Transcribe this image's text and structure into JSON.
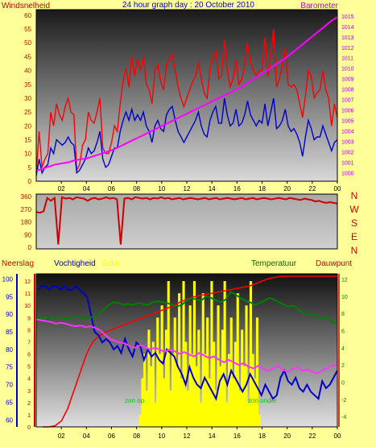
{
  "page_bg": "#ffff99",
  "chart_data": [
    {
      "type": "line",
      "title": "24 hour graph day : 20 October 2010",
      "left_label": "Windsnelheid",
      "right_label": "Barometer",
      "left_ticks": [
        "0",
        "5",
        "10",
        "15",
        "20",
        "25",
        "30",
        "35",
        "40",
        "45",
        "50",
        "55",
        "60"
      ],
      "right_ticks": [
        "1000",
        "1001",
        "1002",
        "1003",
        "1004",
        "1005",
        "1006",
        "1007",
        "1008",
        "1009",
        "1010",
        "1011",
        "1012",
        "1013",
        "1014",
        "1015"
      ],
      "x_ticks": [
        "02",
        "04",
        "06",
        "08",
        "10",
        "12",
        "14",
        "16",
        "18",
        "20",
        "22",
        "00"
      ],
      "ylim_left": [
        0,
        62
      ],
      "ylim_right": [
        999.2,
        1015.6
      ],
      "colors": {
        "gust": "#ff0000",
        "wind": "#0000cc",
        "barometer": "#ff00ff",
        "left_axis": "#cc0000",
        "right_axis": "#cc00cc"
      },
      "series": [
        {
          "key": "gust",
          "values": [
            3,
            18,
            5,
            8,
            10,
            25,
            20,
            28,
            24,
            22,
            27,
            30,
            25,
            24,
            4,
            6,
            13,
            15,
            25,
            22,
            21,
            25,
            30,
            12,
            10,
            10,
            14,
            20,
            18,
            28,
            36,
            41,
            34,
            45,
            38,
            44,
            40,
            45,
            35,
            33,
            28,
            40,
            42,
            36,
            33,
            42,
            44,
            46,
            40,
            34,
            30,
            27,
            30,
            33,
            36,
            38,
            43,
            37,
            32,
            30,
            41,
            45,
            47,
            37,
            38,
            51,
            40,
            34,
            37,
            44,
            35,
            37,
            42,
            50,
            43,
            40,
            38,
            40,
            40,
            52,
            38,
            45,
            55,
            34,
            37,
            42,
            48,
            35,
            34,
            35,
            33,
            28,
            23,
            31,
            40,
            38,
            30,
            32,
            33,
            40,
            33,
            30,
            20,
            28,
            23
          ]
        },
        {
          "key": "wind",
          "values": [
            2,
            8,
            3,
            5,
            6,
            12,
            10,
            15,
            14,
            13,
            14,
            16,
            14,
            13,
            3,
            4,
            6,
            8,
            12,
            10,
            11,
            14,
            18,
            8,
            5,
            6,
            9,
            12,
            12,
            18,
            22,
            25,
            22,
            26,
            22,
            24,
            22,
            25,
            20,
            18,
            14,
            20,
            22,
            19,
            18,
            24,
            26,
            27,
            22,
            18,
            16,
            14,
            16,
            18,
            20,
            22,
            25,
            20,
            17,
            16,
            22,
            25,
            27,
            21,
            21,
            30,
            24,
            20,
            21,
            26,
            20,
            21,
            24,
            29,
            24,
            22,
            20,
            22,
            21,
            28,
            20,
            25,
            30,
            19,
            20,
            22,
            26,
            20,
            18,
            19,
            17,
            14,
            9,
            16,
            22,
            19,
            15,
            16,
            16,
            20,
            17,
            14,
            11,
            14,
            15
          ]
        },
        {
          "key": "barometer",
          "values": [
            1000.2,
            1000.4,
            1000.6,
            1000.8,
            1000.9,
            1001.0,
            1001.2,
            1001.3,
            1001.4,
            1001.6,
            1001.8,
            1002.0,
            1002.2,
            1002.5,
            1002.8,
            1003.1,
            1003.4,
            1003.7,
            1004.0,
            1004.3,
            1004.6,
            1004.9,
            1005.2,
            1005.5,
            1005.8,
            1006.1,
            1006.4,
            1006.7,
            1007.0,
            1007.3,
            1007.6,
            1007.9,
            1008.2,
            1008.6,
            1009.0,
            1009.4,
            1009.8,
            1010.2,
            1010.6,
            1011.0,
            1011.5,
            1012.0,
            1012.5,
            1013.0,
            1013.5,
            1014.0,
            1014.5,
            1014.9
          ]
        }
      ]
    },
    {
      "type": "line",
      "y_ticks": [
        "0",
        "90",
        "180",
        "270",
        "360"
      ],
      "ylim": [
        0,
        360
      ],
      "compass_labels": [
        "N",
        "W",
        "S",
        "E",
        "N"
      ],
      "colors": {
        "direction": "#cc0000",
        "axis": "#cc0000",
        "compass": "#cc0000"
      },
      "series": [
        {
          "key": "direction",
          "values": [
            250,
            245,
            255,
            350,
            330,
            350,
            20,
            355,
            345,
            350,
            340,
            355,
            350,
            345,
            330,
            345,
            350,
            340,
            345,
            355,
            345,
            350,
            340,
            20,
            345,
            350,
            340,
            355,
            350,
            345,
            350,
            340,
            350,
            345,
            355,
            345,
            350,
            340,
            345,
            350,
            340,
            345,
            350,
            345,
            340,
            345,
            350,
            340,
            345,
            350,
            340,
            345,
            350,
            345,
            340,
            345,
            350,
            340,
            345,
            350,
            340,
            345,
            350,
            345,
            340,
            345,
            350,
            345,
            340,
            350,
            345,
            340,
            335,
            345,
            340,
            335,
            325,
            330,
            320,
            315,
            320,
            315,
            310
          ]
        }
      ]
    },
    {
      "type": "line",
      "labels": {
        "rain": "Neerslag",
        "humidity": "Vochtigheid",
        "solar": "Solar",
        "temperature": "Temperatuur",
        "dewpoint": "Dauwpunt"
      },
      "left_ticks": [
        "60",
        "65",
        "70",
        "75",
        "80",
        "85",
        "90",
        "95",
        "100"
      ],
      "left_ticks_2": [
        "0",
        "1",
        "2",
        "3",
        "4",
        "5",
        "6",
        "7",
        "8",
        "9",
        "10",
        "11",
        "12"
      ],
      "right_ticks": [
        "-4",
        "-2",
        "0",
        "2",
        "4",
        "6",
        "8",
        "10",
        "12"
      ],
      "x_ticks": [
        "02",
        "04",
        "06",
        "08",
        "10",
        "12",
        "14",
        "16",
        "18",
        "20",
        "22",
        "00"
      ],
      "sun_up_label": "zon op",
      "sun_down_label": "zon onder",
      "ylim_humidity": [
        58,
        101.5
      ],
      "ylim_temp": [
        -5.2,
        12.6
      ],
      "ylim_rain": [
        0,
        12.6
      ],
      "colors": {
        "humidity": "#0000cc",
        "temperature": "#008000",
        "dewpoint": "#ff33ff",
        "rain": "#ff0000",
        "solar": "#ffff00",
        "rain_axis": "#cc0000",
        "humidity_axis": "#0000cc",
        "temp_axis": "#008000",
        "label_rain": "#cc0000",
        "label_humidity": "#000099",
        "label_solar": "#ffff00",
        "label_temperature": "#006600",
        "label_dewpoint": "#cc0000",
        "sun_label": "#00cc00"
      },
      "series": [
        {
          "key": "rain",
          "values": [
            0,
            0,
            0.1,
            0.5,
            1.5,
            3,
            4.5,
            6,
            7,
            7.5,
            7.8,
            8,
            8.2,
            8.4,
            8.6,
            8.8,
            9,
            9.2,
            9.4,
            9.6,
            9.8,
            10,
            10.3,
            10.5,
            10.7,
            10.8,
            10.9,
            11,
            11.1,
            11.2,
            11.3,
            11.4,
            11.5,
            11.6,
            11.8,
            12,
            12.2,
            12.3,
            12.4,
            12.4,
            12.4,
            12.4,
            12.4,
            12.4,
            12.4,
            12.4,
            12.4,
            12.4
          ]
        },
        {
          "key": "humidity",
          "values": [
            97,
            98,
            98,
            97,
            98,
            98,
            97,
            98,
            97,
            97,
            98,
            97,
            96,
            95,
            90,
            85,
            84,
            82,
            83,
            82,
            80,
            81,
            79,
            83,
            80,
            78,
            82,
            81,
            77,
            80,
            78,
            79,
            77,
            76,
            80,
            79,
            78,
            75,
            73,
            70,
            75,
            72,
            70,
            69,
            72,
            70,
            68,
            66,
            71,
            73,
            70,
            74,
            72,
            70,
            68,
            70,
            73,
            71,
            69,
            67,
            70,
            68,
            66,
            67,
            72,
            74,
            71,
            70,
            72,
            69,
            68,
            70,
            68,
            67,
            66,
            71,
            69,
            70,
            72,
            74
          ]
        },
        {
          "key": "temperature",
          "values": [
            7.5,
            7.4,
            7.5,
            7.3,
            7.6,
            7.5,
            7.4,
            7.5,
            7.6,
            7.5,
            7.4,
            7.5,
            7.6,
            8.0,
            8.5,
            9.0,
            9.3,
            9.2,
            9.0,
            9.1,
            9.0,
            9.2,
            9.1,
            9.0,
            9.3,
            9.4,
            9.3,
            9.2,
            9.0,
            8.8,
            9.0,
            9.5,
            9.8,
            9.6,
            9.5,
            10.0,
            9.8,
            9.5,
            9.3,
            9.6,
            10.5,
            10.2,
            9.8,
            9.5,
            9.3,
            9.0,
            9.2,
            9.5,
            9.8,
            9.6,
            9.3,
            9.0,
            8.8,
            8.9,
            8.5,
            8.0,
            7.8,
            8.0,
            7.5,
            7.3,
            7.5,
            7.0,
            6.8
          ]
        },
        {
          "key": "dewpoint",
          "values": [
            7.3,
            7.2,
            7.1,
            7.0,
            6.8,
            6.9,
            6.8,
            6.6,
            6.5,
            6.6,
            6.4,
            6.5,
            6.3,
            6.0,
            5.5,
            5.0,
            4.8,
            4.6,
            4.5,
            4.2,
            4.0,
            4.3,
            4.1,
            3.8,
            4.0,
            3.8,
            3.5,
            3.8,
            3.6,
            3.3,
            3.5,
            3.2,
            3.0,
            3.4,
            3.1,
            2.8,
            3.0,
            2.6,
            2.3,
            2.6,
            2.3,
            2.0,
            2.2,
            1.8,
            1.6,
            1.9,
            1.5,
            1.3,
            1.6,
            1.9,
            1.4,
            1.2,
            1.5,
            1.8,
            1.3,
            1.5,
            1.2,
            1.0,
            1.4,
            1.6,
            2.0,
            1.9
          ]
        },
        {
          "key": "solar",
          "values": [
            0,
            1,
            4,
            6,
            3,
            8,
            5,
            7,
            2,
            9,
            6,
            10,
            4,
            8,
            12,
            3,
            6,
            9,
            5,
            11,
            4,
            12,
            7,
            3,
            10,
            6,
            12,
            5,
            8,
            2,
            11,
            6,
            9,
            4,
            12,
            7,
            3,
            10,
            5,
            8,
            12,
            2,
            6,
            9,
            4,
            7,
            11,
            3,
            8,
            5,
            10,
            2,
            12,
            6,
            4,
            9,
            1,
            0
          ]
        }
      ]
    }
  ]
}
